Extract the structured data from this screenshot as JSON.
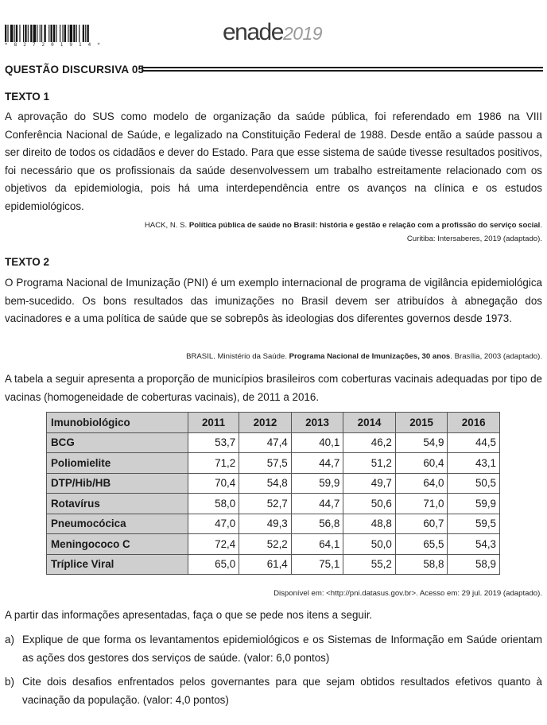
{
  "header": {
    "barcode_number": "* 8 2 7 2 0 1 9 1 4 *",
    "logo_brand": "enade",
    "logo_year": "2019"
  },
  "question_title": "QUESTÃO DISCURSIVA 05",
  "texto1": {
    "heading": "TEXTO 1",
    "body": "A aprovação do SUS como modelo de organização da saúde pública, foi referendado em 1986 na VIII Conferência Nacional de Saúde, e legalizado na Constituição Federal de 1988. Desde então a saúde passou a ser direito de todos os cidadãos e dever do Estado. Para que esse sistema de saúde tivesse resultados positivos, foi necessário que os profissionais da saúde desenvolvessem um trabalho estreitamente relacionado com os objetivos da epidemiologia, pois há uma interdependência entre os avanços na clínica e os estudos epidemiológicos.",
    "ref_author": "HACK, N. S. ",
    "ref_title": "Política pública de saúde no Brasil: história e gestão e relação com a profissão do serviço social",
    "ref_end": ".",
    "ref_line2": "Curitiba: Intersaberes, 2019 (adaptado)."
  },
  "texto2": {
    "heading": "TEXTO 2",
    "body": "O Programa Nacional de Imunização (PNI) é um exemplo internacional de programa de vigilância epidemiológica bem-sucedido. Os bons resultados das imunizações no Brasil devem ser atribuídos à abnegação dos vacinadores e a uma política de saúde que se sobrepôs às ideologias dos diferentes governos desde 1973.",
    "ref_author": "BRASIL. Ministério da Saúde. ",
    "ref_title": "Programa Nacional de Imunizações, 30 anos",
    "ref_end": ". Brasília, 2003 (adaptado)."
  },
  "table_intro": "A tabela a seguir apresenta a proporção de municípios brasileiros com coberturas vacinais adequadas por tipo de vacinas (homogeneidade de coberturas vacinais), de 2011 a 2016.",
  "table": {
    "headers": [
      "Imunobiológico",
      "2011",
      "2012",
      "2013",
      "2014",
      "2015",
      "2016"
    ],
    "rows": [
      [
        "BCG",
        "53,7",
        "47,4",
        "40,1",
        "46,2",
        "54,9",
        "44,5"
      ],
      [
        "Poliomielite",
        "71,2",
        "57,5",
        "44,7",
        "51,2",
        "60,4",
        "43,1"
      ],
      [
        "DTP/Hib/HB",
        "70,4",
        "54,8",
        "59,9",
        "49,7",
        "64,0",
        "50,5"
      ],
      [
        "Rotavírus",
        "58,0",
        "52,7",
        "44,7",
        "50,6",
        "71,0",
        "59,9"
      ],
      [
        "Pneumocócica",
        "47,0",
        "49,3",
        "56,8",
        "48,8",
        "60,7",
        "59,5"
      ],
      [
        "Meningococo C",
        "72,4",
        "52,2",
        "64,1",
        "50,0",
        "65,5",
        "54,3"
      ],
      [
        "Tríplice Viral",
        "65,0",
        "61,4",
        "75,1",
        "55,2",
        "58,8",
        "58,9"
      ]
    ]
  },
  "table_source": "Disponível em: <http://pni.datasus.gov.br>.  Acesso em: 29 jul. 2019 (adaptado).",
  "instruction": "A partir das informações apresentadas, faça o que se pede nos itens a seguir.",
  "items": [
    {
      "label": "a)",
      "text": "Explique de que forma os levantamentos epidemiológicos e os Sistemas de Informação em Saúde orientam as ações dos gestores dos serviços de saúde. (valor: 6,0 pontos)"
    },
    {
      "label": "b)",
      "text": "Cite dois desafios enfrentados pelos governantes para que sejam obtidos resultados efetivos quanto à vacinação da população. (valor: 4,0 pontos)"
    }
  ]
}
